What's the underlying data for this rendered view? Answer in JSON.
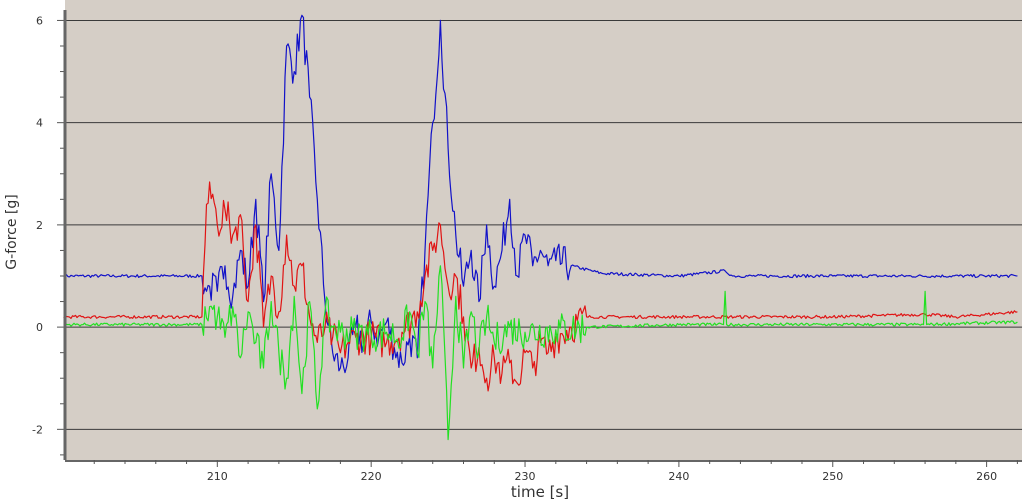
{
  "chart_data": {
    "type": "line",
    "title": "",
    "xlabel": "time [s]",
    "ylabel": "G-force [g]",
    "xlim": [
      200.1,
      262.3
    ],
    "ylim": [
      -2.6,
      6.4
    ],
    "xticks": [
      210,
      220,
      230,
      240,
      250,
      260
    ],
    "yticks": [
      -2,
      0,
      2,
      4,
      6
    ],
    "grid": "horizontal major lines",
    "legend": "none",
    "colors": {
      "plot_background": "#d5cec6",
      "grid": "#3a3a3a"
    },
    "series": [
      {
        "color": "#1212c8",
        "points": [
          [
            200,
            1.0
          ],
          [
            209,
            1.0
          ],
          [
            209.3,
            0.7
          ],
          [
            209.5,
            0.8
          ],
          [
            210,
            0.7
          ],
          [
            210.5,
            1.2
          ],
          [
            211,
            0.6
          ],
          [
            211.5,
            1.5
          ],
          [
            212,
            0.8
          ],
          [
            212.5,
            2.5
          ],
          [
            213,
            0.5
          ],
          [
            213.5,
            3.0
          ],
          [
            214,
            1.5
          ],
          [
            214.5,
            5.5
          ],
          [
            215,
            5.0
          ],
          [
            215.5,
            6.1
          ],
          [
            216,
            4.5
          ],
          [
            216.5,
            2.5
          ],
          [
            217,
            0.5
          ],
          [
            217.5,
            -0.5
          ],
          [
            218,
            -0.8
          ],
          [
            218.5,
            -0.6
          ],
          [
            219,
            0.0
          ],
          [
            219.5,
            -0.3
          ],
          [
            220,
            0.1
          ],
          [
            220.5,
            -0.2
          ],
          [
            221,
            0.1
          ],
          [
            221.5,
            -0.4
          ],
          [
            222,
            -0.7
          ],
          [
            222.5,
            -0.2
          ],
          [
            223,
            -0.6
          ],
          [
            223.5,
            1.5
          ],
          [
            224,
            4.0
          ],
          [
            224.5,
            6.0
          ],
          [
            225,
            3.5
          ],
          [
            225.5,
            1.8
          ],
          [
            226,
            0.8
          ],
          [
            226.5,
            1.5
          ],
          [
            227,
            0.5
          ],
          [
            227.5,
            2.0
          ],
          [
            228,
            0.8
          ],
          [
            228.5,
            1.5
          ],
          [
            229,
            2.5
          ],
          [
            229.5,
            1.0
          ],
          [
            230,
            1.8
          ],
          [
            230.5,
            1.2
          ],
          [
            231,
            1.5
          ],
          [
            231.5,
            1.2
          ],
          [
            232,
            1.3
          ],
          [
            233,
            1.2
          ],
          [
            235,
            1.05
          ],
          [
            240,
            1.0
          ],
          [
            243,
            1.1
          ],
          [
            243.5,
            1.0
          ],
          [
            250,
            1.0
          ],
          [
            262,
            1.0
          ]
        ]
      },
      {
        "color": "#e01414",
        "points": [
          [
            200,
            0.2
          ],
          [
            209,
            0.2
          ],
          [
            209.3,
            2.4
          ],
          [
            209.7,
            2.6
          ],
          [
            210,
            2.0
          ],
          [
            210.5,
            2.3
          ],
          [
            211,
            1.8
          ],
          [
            211.5,
            2.2
          ],
          [
            212,
            0.5
          ],
          [
            212.5,
            2.0
          ],
          [
            213,
            0.0
          ],
          [
            213.5,
            1.0
          ],
          [
            214,
            0.3
          ],
          [
            214.5,
            1.8
          ],
          [
            215,
            0.8
          ],
          [
            215.5,
            1.2
          ],
          [
            216,
            0.2
          ],
          [
            216.5,
            -0.3
          ],
          [
            217,
            0.0
          ],
          [
            217.5,
            -0.2
          ],
          [
            218,
            -0.5
          ],
          [
            218.5,
            -0.3
          ],
          [
            219,
            -0.2
          ],
          [
            220,
            -0.2
          ],
          [
            221,
            -0.3
          ],
          [
            222,
            -0.1
          ],
          [
            223,
            0.3
          ],
          [
            223.5,
            1.0
          ],
          [
            224,
            1.5
          ],
          [
            224.5,
            2.0
          ],
          [
            225,
            0.8
          ],
          [
            225.5,
            1.0
          ],
          [
            226,
            0.2
          ],
          [
            226.5,
            -0.8
          ],
          [
            227,
            -0.4
          ],
          [
            227.5,
            -1.0
          ],
          [
            228,
            -0.6
          ],
          [
            228.5,
            -0.9
          ],
          [
            229,
            -0.7
          ],
          [
            229.5,
            -1.1
          ],
          [
            230,
            -0.5
          ],
          [
            230.5,
            -0.8
          ],
          [
            231,
            -0.3
          ],
          [
            231.5,
            -0.5
          ],
          [
            232,
            -0.2
          ],
          [
            233,
            0.0
          ],
          [
            234,
            0.2
          ],
          [
            240,
            0.2
          ],
          [
            250,
            0.2
          ],
          [
            256,
            0.25
          ],
          [
            258,
            0.2
          ],
          [
            262,
            0.3
          ]
        ]
      },
      {
        "color": "#22e022",
        "points": [
          [
            200,
            0.05
          ],
          [
            209,
            0.05
          ],
          [
            209.5,
            0.4
          ],
          [
            210,
            0.2
          ],
          [
            210.5,
            -0.2
          ],
          [
            211,
            0.4
          ],
          [
            211.5,
            -0.6
          ],
          [
            212,
            0.3
          ],
          [
            212.5,
            -0.3
          ],
          [
            213,
            -0.8
          ],
          [
            213.5,
            0.5
          ],
          [
            214,
            -0.5
          ],
          [
            214.5,
            -1.0
          ],
          [
            215,
            0.6
          ],
          [
            215.5,
            -1.3
          ],
          [
            216,
            0.5
          ],
          [
            216.5,
            -1.6
          ],
          [
            217,
            0.3
          ],
          [
            217.5,
            0.0
          ],
          [
            218,
            -0.1
          ],
          [
            219,
            -0.1
          ],
          [
            220,
            -0.15
          ],
          [
            221,
            -0.1
          ],
          [
            222,
            -0.2
          ],
          [
            222.5,
            0.3
          ],
          [
            223,
            -0.5
          ],
          [
            223.5,
            0.5
          ],
          [
            224,
            -0.8
          ],
          [
            224.5,
            1.2
          ],
          [
            225,
            -2.2
          ],
          [
            225.5,
            0.6
          ],
          [
            226,
            -0.8
          ],
          [
            226.5,
            0.3
          ],
          [
            227,
            -0.5
          ],
          [
            227.5,
            0.2
          ],
          [
            228,
            -0.3
          ],
          [
            229,
            0.0
          ],
          [
            230,
            -0.1
          ],
          [
            232,
            -0.05
          ],
          [
            234,
            0.0
          ],
          [
            240,
            0.05
          ],
          [
            242.9,
            0.05
          ],
          [
            243,
            0.7
          ],
          [
            243.1,
            0.05
          ],
          [
            255.9,
            0.05
          ],
          [
            256,
            0.7
          ],
          [
            256.1,
            0.05
          ],
          [
            262,
            0.1
          ]
        ]
      }
    ]
  }
}
